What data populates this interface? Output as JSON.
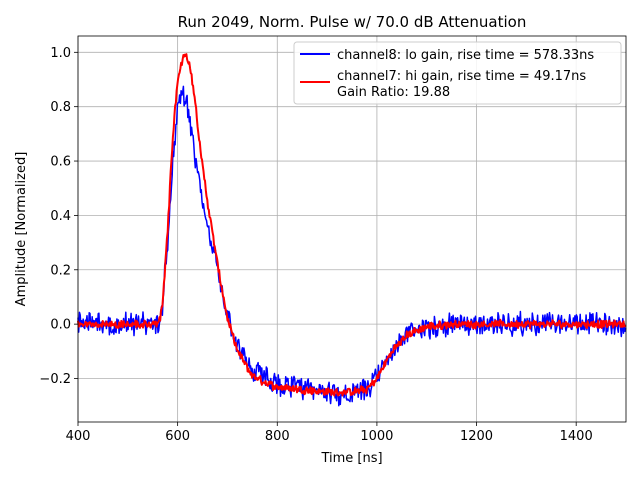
{
  "chart_data": {
    "type": "line",
    "title": "Run 2049, Norm. Pulse w/ 70.0 dB Attenuation",
    "xlabel": "Time [ns]",
    "ylabel": "Amplitude [Normalized]",
    "xlim": [
      400,
      1500
    ],
    "ylim": [
      -0.36,
      1.06
    ],
    "xticks": [
      400,
      600,
      800,
      1000,
      1200,
      1400
    ],
    "xtick_labels": [
      "400",
      "600",
      "800",
      "1000",
      "1200",
      "1400"
    ],
    "yticks": [
      -0.2,
      0.0,
      0.2,
      0.4,
      0.6,
      0.8,
      1.0
    ],
    "ytick_labels": [
      "−0.2",
      "0.0",
      "0.2",
      "0.4",
      "0.6",
      "0.8",
      "1.0"
    ],
    "grid": true,
    "legend_position": "top-right",
    "legend_extra_text": "Gain Ratio: 19.88",
    "series": [
      {
        "name": "channel8: lo gain, rise time = 578.33ns",
        "color": "#0000ff",
        "noise": 0.035,
        "x": [
          400,
          560,
          565,
          570,
          580,
          590,
          600,
          610,
          618,
          625,
          635,
          645,
          660,
          680,
          700,
          720,
          750,
          780,
          800,
          850,
          900,
          950,
          980,
          1000,
          1030,
          1060,
          1100,
          1150,
          1200,
          1300,
          1400,
          1500
        ],
        "y": [
          0.0,
          0.0,
          0.02,
          0.08,
          0.3,
          0.6,
          0.8,
          0.86,
          0.82,
          0.74,
          0.62,
          0.5,
          0.37,
          0.2,
          0.04,
          -0.08,
          -0.17,
          -0.2,
          -0.22,
          -0.24,
          -0.25,
          -0.26,
          -0.24,
          -0.2,
          -0.1,
          -0.04,
          -0.01,
          0.0,
          0.0,
          0.0,
          0.0,
          0.0
        ]
      },
      {
        "name": "channel7: hi gain, rise time = 49.17ns",
        "color": "#ff0000",
        "noise": 0.012,
        "x": [
          400,
          560,
          565,
          570,
          580,
          590,
          600,
          610,
          618,
          625,
          635,
          645,
          660,
          680,
          700,
          720,
          750,
          780,
          800,
          850,
          900,
          950,
          980,
          1000,
          1030,
          1060,
          1100,
          1150,
          1200,
          1300,
          1400,
          1500
        ],
        "y": [
          0.0,
          0.0,
          0.02,
          0.08,
          0.35,
          0.68,
          0.9,
          0.98,
          0.99,
          0.95,
          0.82,
          0.65,
          0.45,
          0.22,
          0.02,
          -0.1,
          -0.19,
          -0.22,
          -0.23,
          -0.24,
          -0.25,
          -0.25,
          -0.24,
          -0.2,
          -0.1,
          -0.04,
          -0.01,
          0.0,
          0.0,
          0.0,
          0.0,
          0.0
        ]
      }
    ]
  }
}
